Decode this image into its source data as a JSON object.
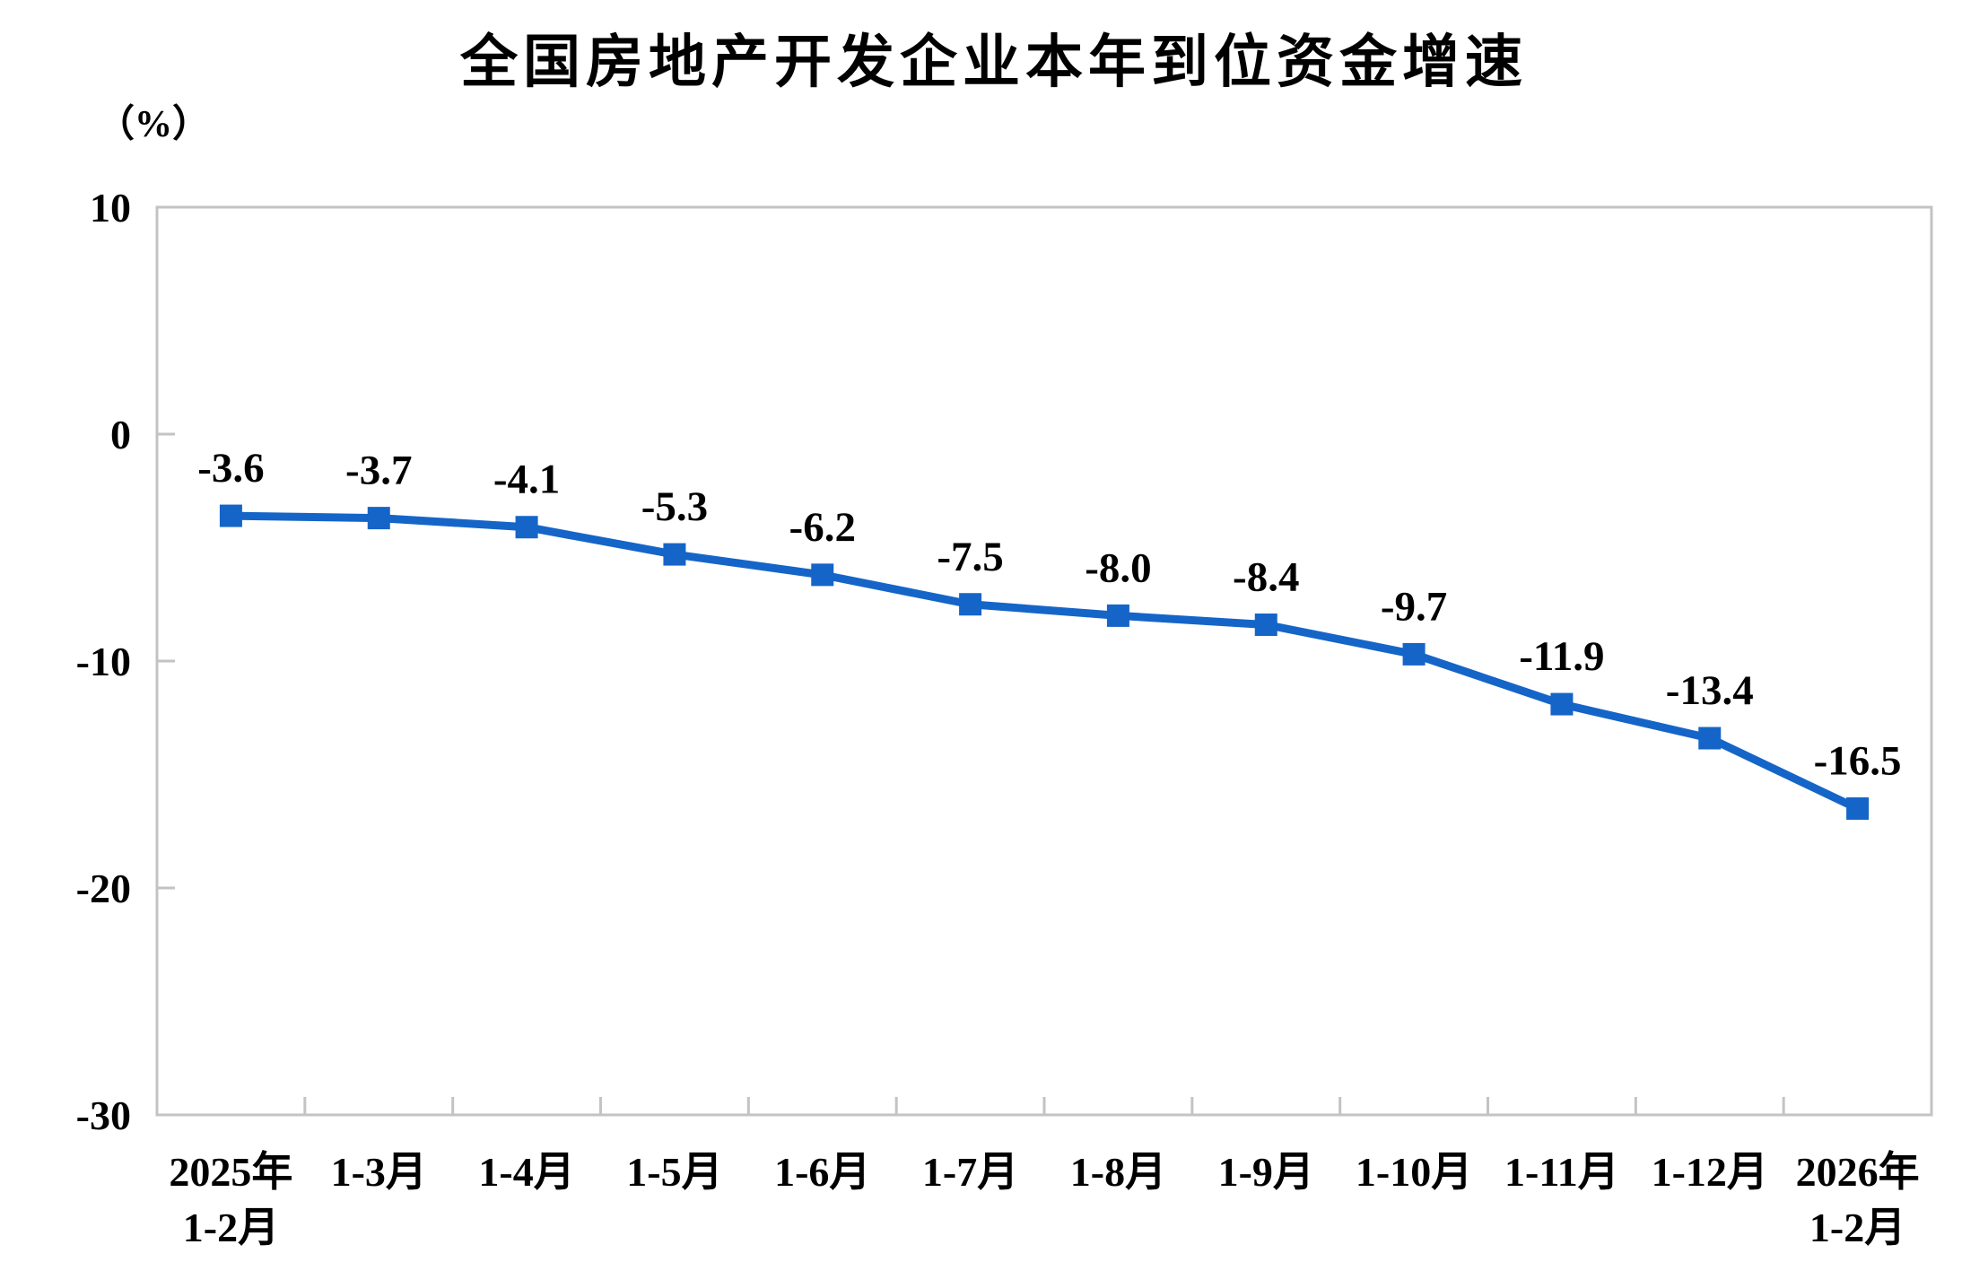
{
  "title": "全国房地产开发企业本年到位资金增速",
  "y_axis_unit": "（%）",
  "chart_data": {
    "type": "line",
    "title": "全国房地产开发企业本年到位资金增速",
    "ylabel": "（%）",
    "xlabel": "",
    "categories": [
      "2025年\n1-2月",
      "1-3月",
      "1-4月",
      "1-5月",
      "1-6月",
      "1-7月",
      "1-8月",
      "1-9月",
      "1-10月",
      "1-11月",
      "1-12月",
      "2026年\n1-2月"
    ],
    "values": [
      -3.6,
      -3.7,
      -4.1,
      -5.3,
      -6.2,
      -7.5,
      -8.0,
      -8.4,
      -9.7,
      -11.9,
      -13.4,
      -16.5
    ],
    "labels": [
      "-3.6",
      "-3.7",
      "-4.1",
      "-5.3",
      "-6.2",
      "-7.5",
      "-8.0",
      "-8.4",
      "-9.7",
      "-11.9",
      "-13.4",
      "-16.5"
    ],
    "ylim": [
      -30,
      10
    ],
    "yticks": [
      10,
      0,
      -10,
      -20,
      -30
    ],
    "grid": false,
    "legend_position": "none",
    "line_color": "#1565c8",
    "marker": "square",
    "axis_border_color": "#c3c3c3"
  }
}
